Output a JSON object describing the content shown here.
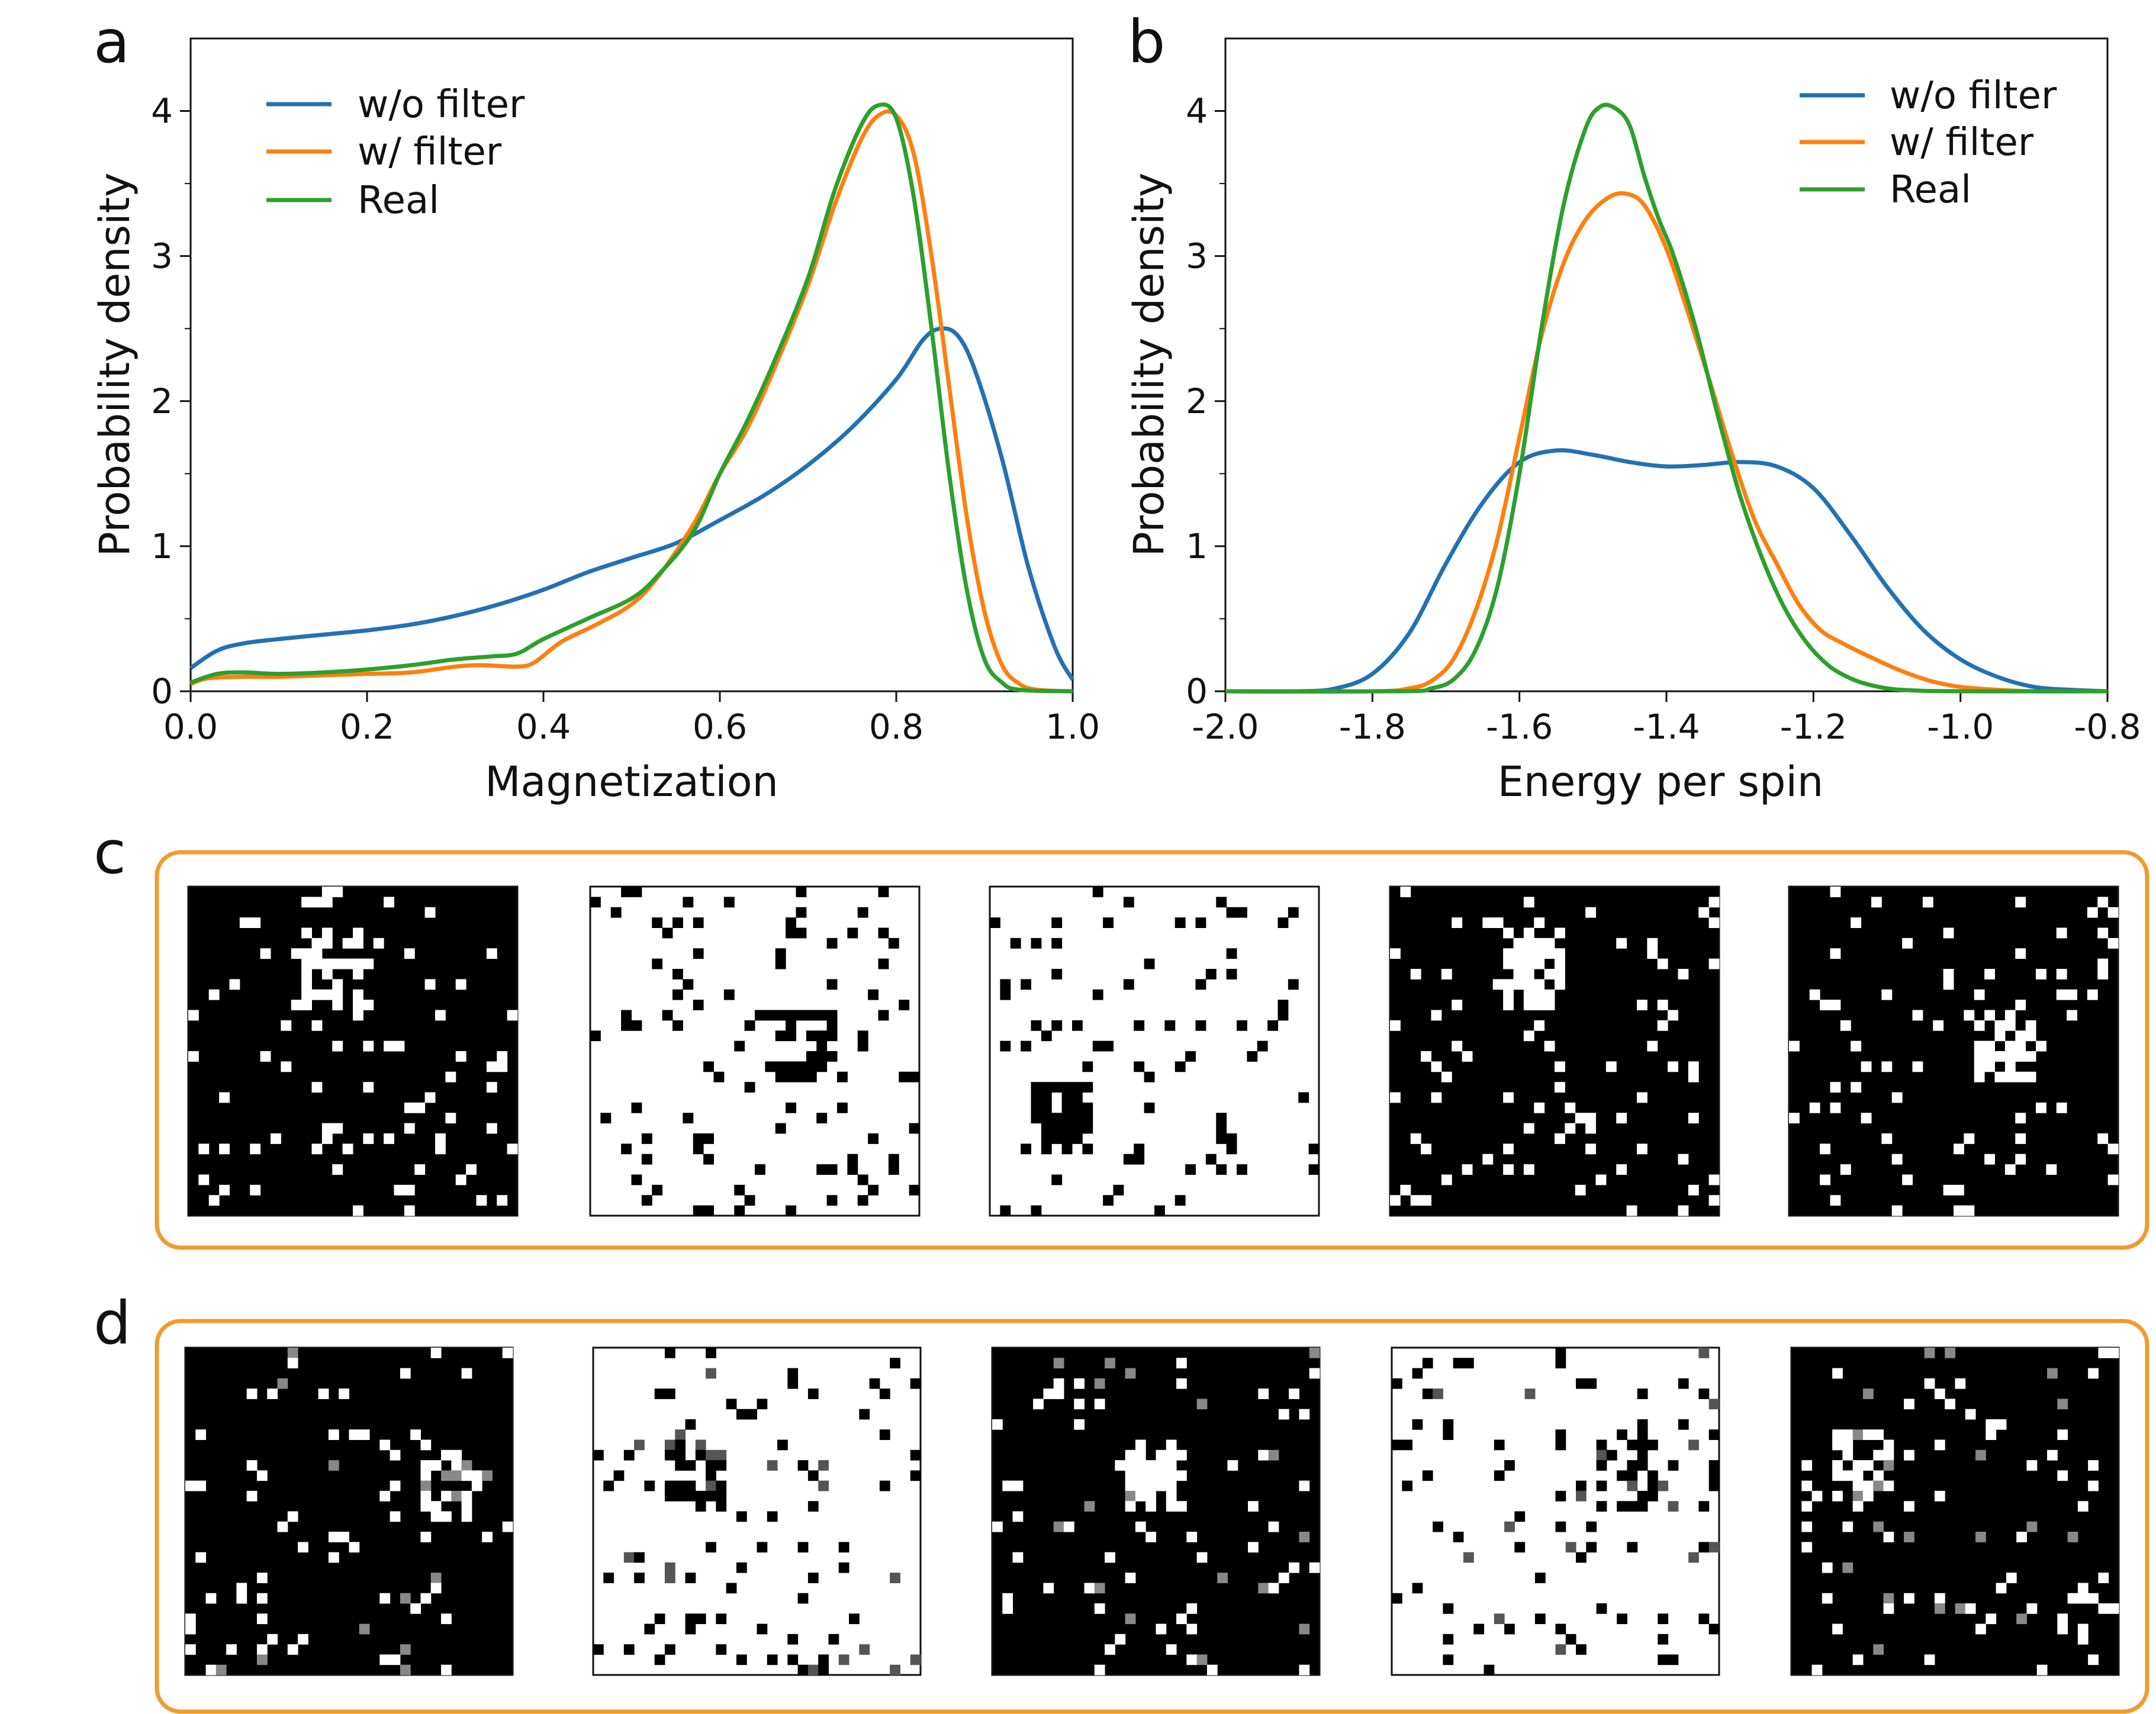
{
  "panel_labels": [
    "a",
    "b",
    "c",
    "d"
  ],
  "colors": {
    "blue": "#2271b2",
    "orange": "#ff7f0e",
    "green": "#2ca02c",
    "frame": "#f39a2e"
  },
  "chart_data": [
    {
      "type": "line",
      "panel": "a",
      "xlabel": "Magnetization",
      "ylabel": "Probability density",
      "xlim": [
        0.0,
        1.0
      ],
      "ylim": [
        0,
        4.5
      ],
      "xticks": [
        "0.0",
        "0.2",
        "0.4",
        "0.6",
        "0.8",
        "1.0"
      ],
      "yticks": [
        "0",
        "1",
        "2",
        "3",
        "4"
      ],
      "legend_position": "top-left",
      "series": [
        {
          "name": "w/o filter",
          "color": "#2271b2",
          "points": [
            [
              0.0,
              0.16
            ],
            [
              0.03,
              0.28
            ],
            [
              0.06,
              0.33
            ],
            [
              0.1,
              0.36
            ],
            [
              0.15,
              0.39
            ],
            [
              0.2,
              0.42
            ],
            [
              0.25,
              0.46
            ],
            [
              0.3,
              0.52
            ],
            [
              0.35,
              0.6
            ],
            [
              0.4,
              0.7
            ],
            [
              0.45,
              0.82
            ],
            [
              0.5,
              0.92
            ],
            [
              0.55,
              1.02
            ],
            [
              0.6,
              1.18
            ],
            [
              0.65,
              1.35
            ],
            [
              0.7,
              1.56
            ],
            [
              0.75,
              1.82
            ],
            [
              0.8,
              2.15
            ],
            [
              0.83,
              2.42
            ],
            [
              0.85,
              2.5
            ],
            [
              0.87,
              2.45
            ],
            [
              0.89,
              2.2
            ],
            [
              0.92,
              1.6
            ],
            [
              0.95,
              0.85
            ],
            [
              0.98,
              0.3
            ],
            [
              1.0,
              0.08
            ]
          ]
        },
        {
          "name": "w/ filter",
          "color": "#ff7f0e",
          "points": [
            [
              0.0,
              0.05
            ],
            [
              0.02,
              0.09
            ],
            [
              0.06,
              0.1
            ],
            [
              0.1,
              0.1
            ],
            [
              0.15,
              0.11
            ],
            [
              0.2,
              0.12
            ],
            [
              0.25,
              0.13
            ],
            [
              0.3,
              0.17
            ],
            [
              0.33,
              0.18
            ],
            [
              0.37,
              0.17
            ],
            [
              0.39,
              0.2
            ],
            [
              0.42,
              0.34
            ],
            [
              0.46,
              0.46
            ],
            [
              0.5,
              0.6
            ],
            [
              0.53,
              0.79
            ],
            [
              0.57,
              1.15
            ],
            [
              0.6,
              1.5
            ],
            [
              0.63,
              1.8
            ],
            [
              0.66,
              2.2
            ],
            [
              0.7,
              2.8
            ],
            [
              0.73,
              3.35
            ],
            [
              0.76,
              3.8
            ],
            [
              0.78,
              3.97
            ],
            [
              0.8,
              3.97
            ],
            [
              0.82,
              3.7
            ],
            [
              0.84,
              3.0
            ],
            [
              0.86,
              2.1
            ],
            [
              0.88,
              1.2
            ],
            [
              0.9,
              0.55
            ],
            [
              0.92,
              0.18
            ],
            [
              0.94,
              0.05
            ],
            [
              0.96,
              0.01
            ],
            [
              1.0,
              0.0
            ]
          ]
        },
        {
          "name": "Real",
          "color": "#2ca02c",
          "points": [
            [
              0.0,
              0.06
            ],
            [
              0.03,
              0.12
            ],
            [
              0.06,
              0.13
            ],
            [
              0.1,
              0.12
            ],
            [
              0.15,
              0.13
            ],
            [
              0.2,
              0.15
            ],
            [
              0.25,
              0.18
            ],
            [
              0.3,
              0.22
            ],
            [
              0.34,
              0.24
            ],
            [
              0.37,
              0.26
            ],
            [
              0.4,
              0.36
            ],
            [
              0.45,
              0.5
            ],
            [
              0.5,
              0.64
            ],
            [
              0.53,
              0.8
            ],
            [
              0.57,
              1.1
            ],
            [
              0.6,
              1.5
            ],
            [
              0.63,
              1.85
            ],
            [
              0.66,
              2.25
            ],
            [
              0.7,
              2.85
            ],
            [
              0.73,
              3.45
            ],
            [
              0.76,
              3.9
            ],
            [
              0.78,
              4.04
            ],
            [
              0.8,
              3.95
            ],
            [
              0.82,
              3.4
            ],
            [
              0.84,
              2.5
            ],
            [
              0.86,
              1.5
            ],
            [
              0.88,
              0.7
            ],
            [
              0.9,
              0.22
            ],
            [
              0.92,
              0.06
            ],
            [
              0.94,
              0.01
            ],
            [
              1.0,
              0.0
            ]
          ]
        }
      ]
    },
    {
      "type": "line",
      "panel": "b",
      "xlabel": "Energy per spin",
      "ylabel": "Probability density",
      "xlim": [
        -2.0,
        -0.8
      ],
      "ylim": [
        0,
        4.5
      ],
      "xticks": [
        "-2.0",
        "-1.8",
        "-1.6",
        "-1.4",
        "-1.2",
        "-1.0",
        "-0.8"
      ],
      "yticks": [
        "0",
        "1",
        "2",
        "3",
        "4"
      ],
      "legend_position": "top-right",
      "series": [
        {
          "name": "w/o filter",
          "color": "#2271b2",
          "points": [
            [
              -2.0,
              0.0
            ],
            [
              -1.9,
              0.0
            ],
            [
              -1.85,
              0.02
            ],
            [
              -1.8,
              0.12
            ],
            [
              -1.75,
              0.4
            ],
            [
              -1.7,
              0.88
            ],
            [
              -1.65,
              1.3
            ],
            [
              -1.6,
              1.58
            ],
            [
              -1.55,
              1.66
            ],
            [
              -1.5,
              1.63
            ],
            [
              -1.45,
              1.58
            ],
            [
              -1.4,
              1.55
            ],
            [
              -1.35,
              1.56
            ],
            [
              -1.3,
              1.58
            ],
            [
              -1.25,
              1.55
            ],
            [
              -1.2,
              1.4
            ],
            [
              -1.15,
              1.08
            ],
            [
              -1.1,
              0.72
            ],
            [
              -1.05,
              0.42
            ],
            [
              -1.0,
              0.22
            ],
            [
              -0.95,
              0.1
            ],
            [
              -0.9,
              0.03
            ],
            [
              -0.85,
              0.01
            ],
            [
              -0.8,
              0.0
            ]
          ]
        },
        {
          "name": "w/ filter",
          "color": "#ff7f0e",
          "points": [
            [
              -2.0,
              0.0
            ],
            [
              -1.8,
              0.0
            ],
            [
              -1.75,
              0.02
            ],
            [
              -1.72,
              0.07
            ],
            [
              -1.69,
              0.22
            ],
            [
              -1.66,
              0.55
            ],
            [
              -1.63,
              1.05
            ],
            [
              -1.6,
              1.75
            ],
            [
              -1.57,
              2.45
            ],
            [
              -1.54,
              2.95
            ],
            [
              -1.51,
              3.25
            ],
            [
              -1.48,
              3.4
            ],
            [
              -1.455,
              3.43
            ],
            [
              -1.43,
              3.35
            ],
            [
              -1.4,
              3.05
            ],
            [
              -1.37,
              2.6
            ],
            [
              -1.34,
              2.12
            ],
            [
              -1.31,
              1.62
            ],
            [
              -1.28,
              1.18
            ],
            [
              -1.25,
              0.88
            ],
            [
              -1.22,
              0.6
            ],
            [
              -1.19,
              0.42
            ],
            [
              -1.16,
              0.33
            ],
            [
              -1.12,
              0.23
            ],
            [
              -1.08,
              0.14
            ],
            [
              -1.04,
              0.07
            ],
            [
              -1.0,
              0.03
            ],
            [
              -0.95,
              0.01
            ],
            [
              -0.9,
              0.0
            ],
            [
              -0.8,
              0.0
            ]
          ]
        },
        {
          "name": "Real",
          "color": "#2ca02c",
          "points": [
            [
              -2.0,
              0.0
            ],
            [
              -1.76,
              0.0
            ],
            [
              -1.72,
              0.02
            ],
            [
              -1.69,
              0.08
            ],
            [
              -1.66,
              0.28
            ],
            [
              -1.63,
              0.72
            ],
            [
              -1.6,
              1.5
            ],
            [
              -1.57,
              2.5
            ],
            [
              -1.54,
              3.35
            ],
            [
              -1.51,
              3.88
            ],
            [
              -1.49,
              4.03
            ],
            [
              -1.47,
              4.02
            ],
            [
              -1.45,
              3.9
            ],
            [
              -1.43,
              3.55
            ],
            [
              -1.41,
              3.25
            ],
            [
              -1.39,
              3.0
            ],
            [
              -1.36,
              2.5
            ],
            [
              -1.33,
              1.9
            ],
            [
              -1.3,
              1.35
            ],
            [
              -1.27,
              0.92
            ],
            [
              -1.24,
              0.58
            ],
            [
              -1.21,
              0.34
            ],
            [
              -1.18,
              0.18
            ],
            [
              -1.15,
              0.09
            ],
            [
              -1.12,
              0.04
            ],
            [
              -1.08,
              0.01
            ],
            [
              -1.0,
              0.0
            ],
            [
              -0.8,
              0.0
            ]
          ]
        }
      ]
    }
  ],
  "spin_panels": {
    "c": [
      "black",
      "white",
      "white",
      "black",
      "black"
    ],
    "d": [
      "black",
      "white",
      "black",
      "white",
      "black"
    ]
  }
}
